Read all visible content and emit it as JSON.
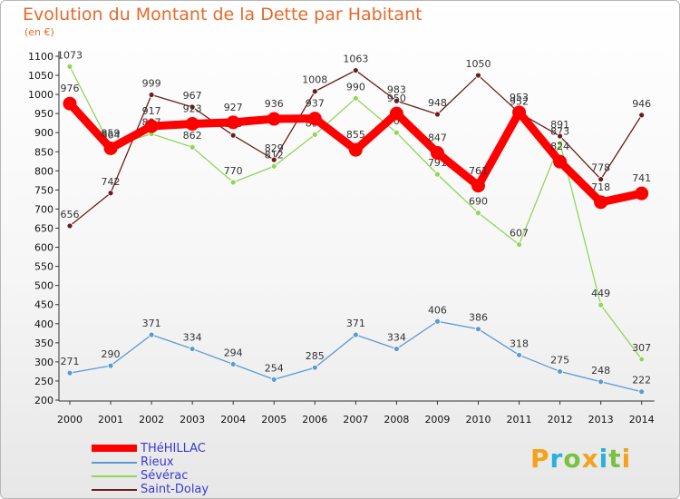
{
  "title": "Evolution du Montant de la Dette par Habitant",
  "unit_label": "(en €)",
  "logo_text": "Proxiti",
  "chart_data": {
    "type": "line",
    "title": "Evolution du Montant de la Dette par Habitant",
    "subtitle": "(en €)",
    "x": [
      "2000",
      "2001",
      "2002",
      "2003",
      "2004",
      "2005",
      "2006",
      "2007",
      "2008",
      "2009",
      "2010",
      "2011",
      "2012",
      "2013",
      "2014"
    ],
    "yticks": [
      200,
      250,
      300,
      350,
      400,
      450,
      500,
      550,
      600,
      650,
      700,
      750,
      800,
      850,
      900,
      950,
      1000,
      1050,
      1100
    ],
    "ylim": [
      200,
      1100
    ],
    "grid": false,
    "legend_position": "bottom-left",
    "series": [
      {
        "name": "THéHILLAC",
        "color": "#ff0000",
        "values": [
          976,
          859,
          917,
          923,
          927,
          936,
          937,
          855,
          950,
          847,
          761,
          953,
          824,
          718,
          741
        ]
      },
      {
        "name": "Rieux",
        "color": "#5a9ad6",
        "values": [
          271,
          290,
          371,
          334,
          294,
          254,
          285,
          371,
          334,
          406,
          386,
          318,
          275,
          248,
          222
        ]
      },
      {
        "name": "Sévérac",
        "color": "#8fd65a",
        "values": [
          1073,
          864,
          897,
          862,
          770,
          812,
          895,
          990,
          900,
          791,
          690,
          607,
          873,
          449,
          307
        ]
      },
      {
        "name": "Saint-Dolay",
        "color": "#6b1d1d",
        "values": [
          656,
          742,
          999,
          967,
          893,
          829,
          1008,
          1063,
          983,
          948,
          1050,
          952,
          891,
          778,
          946
        ]
      }
    ]
  }
}
